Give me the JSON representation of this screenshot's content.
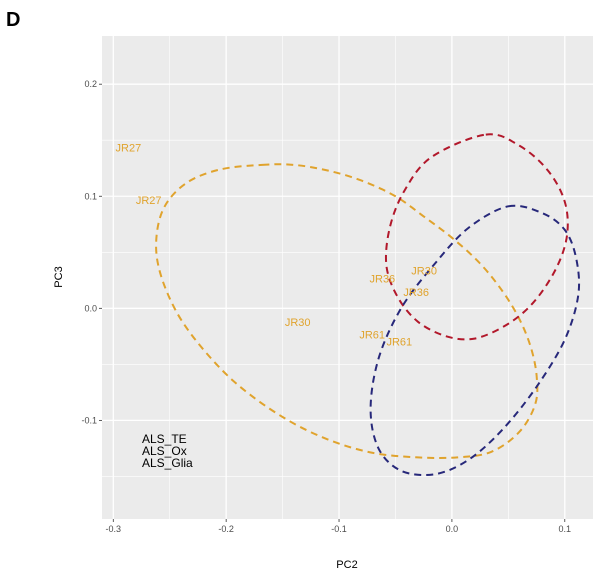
{
  "panel_letter": "D",
  "chart_data": {
    "type": "scatter",
    "title": "",
    "xlabel": "PC2",
    "ylabel": "PC3",
    "xlim": [
      -0.31,
      0.125
    ],
    "ylim": [
      -0.188,
      0.243
    ],
    "x_ticks": [
      -0.3,
      -0.2,
      -0.1,
      0.0,
      0.1
    ],
    "x_tick_labels": [
      "-0.3",
      "-0.2",
      "-0.1",
      "0.0",
      "0.1"
    ],
    "y_ticks": [
      -0.1,
      0.0,
      0.1,
      0.2
    ],
    "y_tick_labels": [
      "-0.1",
      "0.0",
      "0.1",
      "0.2"
    ],
    "grid": true,
    "legend_position": "bottom-left",
    "legend_entries": [
      "ALS_TE",
      "ALS_Ox",
      "ALS_Glia"
    ],
    "colors": {
      "panel_bg": "#ebebeb",
      "grid": "#ffffff",
      "gold": "#e0a32d",
      "red": "#b2182b",
      "navy": "#27287a"
    },
    "labels": [
      {
        "text": "JR27",
        "x": -0.298,
        "y": 0.14
      },
      {
        "text": "JR27",
        "x": -0.28,
        "y": 0.093
      },
      {
        "text": "JR30",
        "x": -0.148,
        "y": -0.016
      },
      {
        "text": "JR36",
        "x": -0.073,
        "y": 0.023
      },
      {
        "text": "JR30",
        "x": -0.036,
        "y": 0.03
      },
      {
        "text": "JR36",
        "x": -0.043,
        "y": 0.011
      },
      {
        "text": "JR61",
        "x": -0.082,
        "y": -0.027
      },
      {
        "text": "JR61",
        "x": -0.058,
        "y": -0.033
      }
    ],
    "ellipses": [
      {
        "color": "gold",
        "points": [
          [
            -0.168,
            0.128
          ],
          [
            -0.14,
            0.128
          ],
          [
            -0.11,
            0.123
          ],
          [
            -0.08,
            0.114
          ],
          [
            -0.05,
            0.1
          ],
          [
            -0.025,
            0.082
          ],
          [
            0.0,
            0.063
          ],
          [
            0.025,
            0.04
          ],
          [
            0.045,
            0.015
          ],
          [
            0.06,
            -0.01
          ],
          [
            0.07,
            -0.035
          ],
          [
            0.075,
            -0.06
          ],
          [
            0.074,
            -0.085
          ],
          [
            0.06,
            -0.11
          ],
          [
            0.035,
            -0.128
          ],
          [
            0.005,
            -0.133
          ],
          [
            -0.03,
            -0.133
          ],
          [
            -0.07,
            -0.129
          ],
          [
            -0.11,
            -0.117
          ],
          [
            -0.15,
            -0.097
          ],
          [
            -0.19,
            -0.068
          ],
          [
            -0.22,
            -0.037
          ],
          [
            -0.243,
            -0.005
          ],
          [
            -0.258,
            0.03
          ],
          [
            -0.262,
            0.06
          ],
          [
            -0.255,
            0.09
          ],
          [
            -0.235,
            0.112
          ],
          [
            -0.205,
            0.124
          ]
        ]
      },
      {
        "color": "red",
        "points": [
          [
            0.03,
            0.155
          ],
          [
            0.06,
            0.145
          ],
          [
            0.085,
            0.123
          ],
          [
            0.1,
            0.095
          ],
          [
            0.102,
            0.065
          ],
          [
            0.092,
            0.035
          ],
          [
            0.072,
            0.005
          ],
          [
            0.048,
            -0.015
          ],
          [
            0.02,
            -0.027
          ],
          [
            -0.005,
            -0.025
          ],
          [
            -0.03,
            -0.012
          ],
          [
            -0.048,
            0.01
          ],
          [
            -0.058,
            0.038
          ],
          [
            -0.055,
            0.072
          ],
          [
            -0.042,
            0.105
          ],
          [
            -0.018,
            0.135
          ]
        ]
      },
      {
        "color": "navy",
        "points": [
          [
            0.05,
            0.091
          ],
          [
            0.08,
            0.085
          ],
          [
            0.1,
            0.07
          ],
          [
            0.11,
            0.045
          ],
          [
            0.112,
            0.012
          ],
          [
            0.1,
            -0.028
          ],
          [
            0.075,
            -0.07
          ],
          [
            0.045,
            -0.108
          ],
          [
            0.015,
            -0.135
          ],
          [
            -0.015,
            -0.148
          ],
          [
            -0.045,
            -0.145
          ],
          [
            -0.065,
            -0.125
          ],
          [
            -0.072,
            -0.09
          ],
          [
            -0.065,
            -0.045
          ],
          [
            -0.045,
            0.0
          ],
          [
            -0.015,
            0.04
          ],
          [
            0.015,
            0.072
          ]
        ]
      }
    ]
  }
}
